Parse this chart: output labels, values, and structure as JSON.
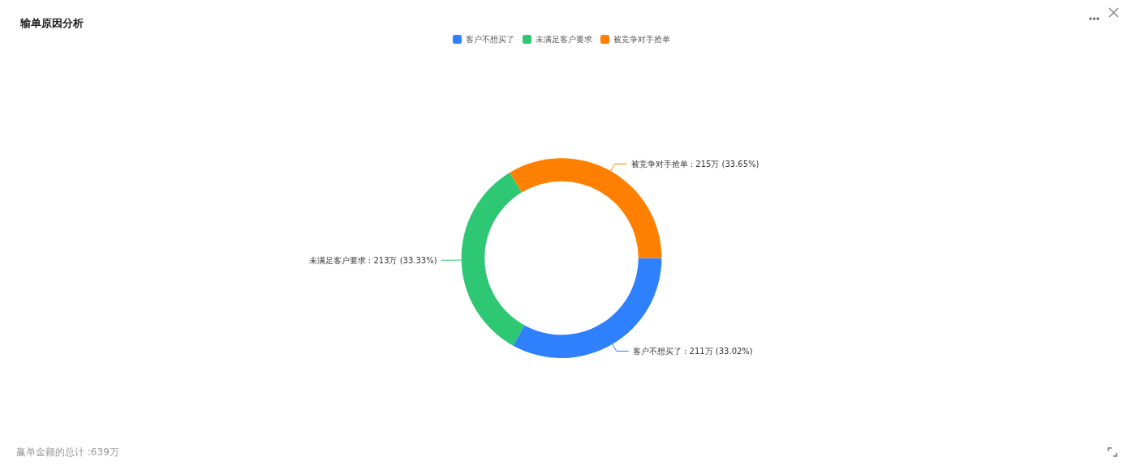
{
  "chart_data": {
    "type": "donut",
    "title": "输单原因分析",
    "categories": [
      "客户不想买了",
      "未满足客户要求",
      "被竞争对手抢单"
    ],
    "values": [
      211,
      213,
      215
    ],
    "colors": [
      "#2f80fd",
      "#2ec774",
      "#ff8000"
    ],
    "value_labels": [
      "客户不想买了 : 211万 (33.02%)",
      "未满足客户要求 : 213万 (33.33%)",
      "被竞争对手抢单 : 215万 (33.65%)"
    ],
    "legend": "top",
    "annotations": [
      "赢单金额的总计 :639万"
    ]
  }
}
